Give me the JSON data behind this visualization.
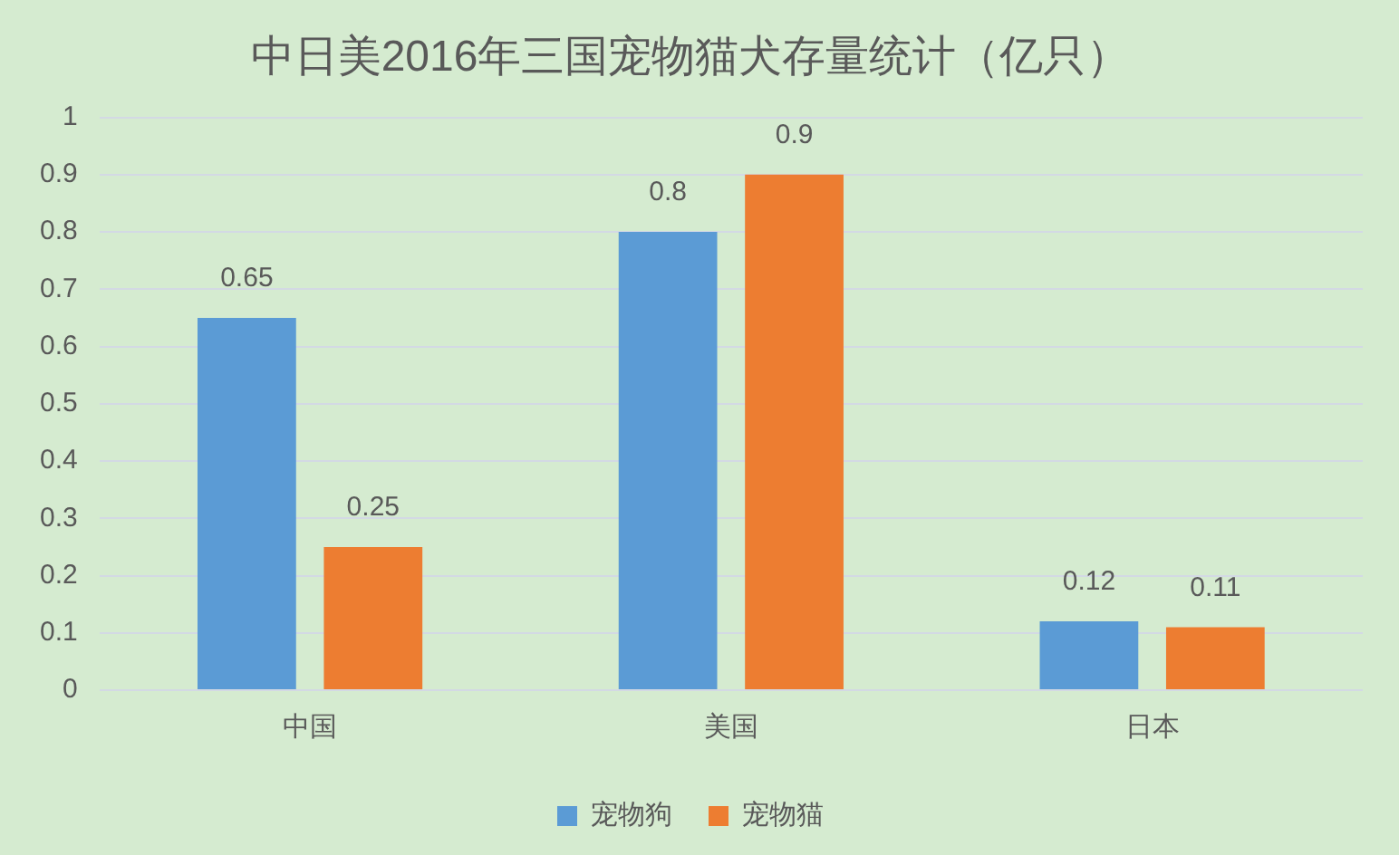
{
  "chart_data": {
    "type": "bar",
    "title": "中日美2016年三国宠物猫犬存量统计（亿只）",
    "categories": [
      "中国",
      "美国",
      "日本"
    ],
    "series": [
      {
        "name": "宠物狗",
        "color": "#5b9bd5",
        "values": [
          0.65,
          0.8,
          0.12
        ]
      },
      {
        "name": "宠物猫",
        "color": "#ed7d31",
        "values": [
          0.25,
          0.9,
          0.11
        ]
      }
    ],
    "ylim": [
      0,
      1
    ],
    "yticks": [
      0,
      0.1,
      0.2,
      0.3,
      0.4,
      0.5,
      0.6,
      0.7,
      0.8,
      0.9,
      1
    ],
    "grid": "y",
    "legend": "bottom",
    "data_labels": true
  }
}
